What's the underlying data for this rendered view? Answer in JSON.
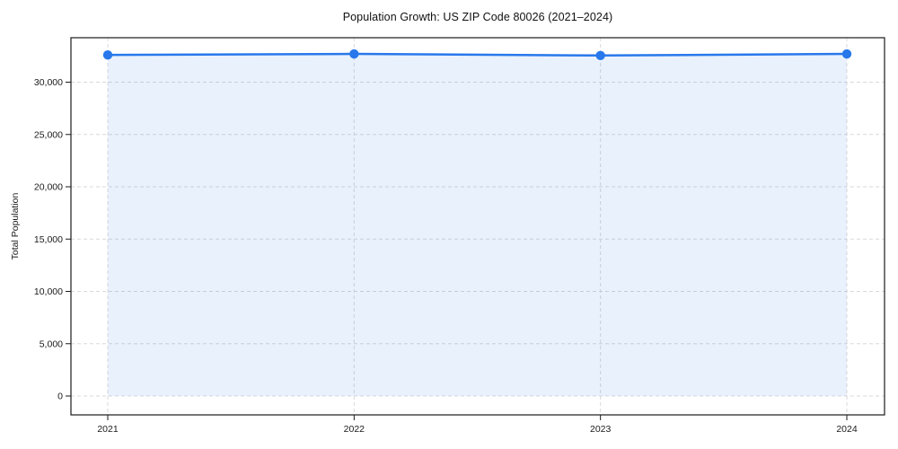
{
  "chart_data": {
    "type": "line",
    "title": "Population Growth: US ZIP Code 80026 (2021–2024)",
    "xlabel": "",
    "ylabel": "Total Population",
    "categories": [
      "2021",
      "2022",
      "2023",
      "2024"
    ],
    "series": [
      {
        "name": "Total Population",
        "values": [
          32600,
          32700,
          32550,
          32700
        ]
      }
    ],
    "ylim": [
      0,
      30000
    ],
    "yticks": [
      0,
      5000,
      10000,
      15000,
      20000,
      25000,
      30000
    ],
    "ytick_labels": [
      "0",
      "5,000",
      "10,000",
      "15,000",
      "20,000",
      "25,000",
      "30,000"
    ],
    "grid": true,
    "grid_style": "dashed",
    "legend_position": "none",
    "area_fill": true,
    "colors": {
      "line": "#2878eb",
      "marker": "#2878eb",
      "area_fill": "rgba(40,120,235,0.10)",
      "grid": "#d9d9d9",
      "axis": "#1a1a1a",
      "title_text": "#111111",
      "tick_text": "#1a1a1a",
      "background": "#ffffff"
    }
  }
}
